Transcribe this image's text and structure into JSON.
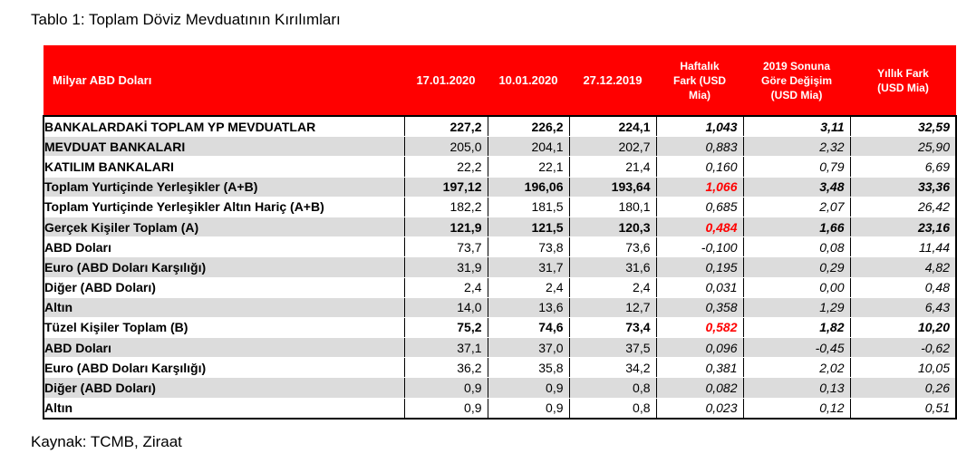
{
  "title": "Tablo 1: Toplam Döviz Mevduatının Kırılımları",
  "source": "Kaynak: TCMB, Ziraat",
  "table": {
    "headers": {
      "label": "Milyar ABD Doları",
      "col1": "17.01.2020",
      "col2": "10.01.2020",
      "col3": "27.12.2019",
      "col4_l1": "Haftalık",
      "col4_l2": "Fark (USD",
      "col4_l3": "Mia)",
      "col5_l1": "2019 Sonuna",
      "col5_l2": "Göre Değişim",
      "col5_l3": "(USD Mia)",
      "col6_l1": "Yıllık Fark",
      "col6_l2": "(USD Mia)"
    },
    "rows": [
      {
        "name": "BANKALARDAKİ TOPLAM YP MEVDUATLAR",
        "c1": "227,2",
        "c2": "226,2",
        "c3": "224,1",
        "c4": "1,043",
        "c5": "3,11",
        "c6": "32,59"
      },
      {
        "name": "MEVDUAT BANKALARI",
        "c1": "205,0",
        "c2": "204,1",
        "c3": "202,7",
        "c4": "0,883",
        "c5": "2,32",
        "c6": "25,90"
      },
      {
        "name": "KATILIM BANKALARI",
        "c1": "22,2",
        "c2": "22,1",
        "c3": "21,4",
        "c4": "0,160",
        "c5": "0,79",
        "c6": "6,69"
      },
      {
        "name": "Toplam Yurtiçinde Yerleşikler (A+B)",
        "c1": "197,12",
        "c2": "196,06",
        "c3": "193,64",
        "c4": "1,066",
        "c5": "3,48",
        "c6": "33,36"
      },
      {
        "name": "Toplam Yurtiçinde Yerleşikler Altın Hariç (A+B)",
        "c1": "182,2",
        "c2": "181,5",
        "c3": "180,1",
        "c4": "0,685",
        "c5": "2,07",
        "c6": "26,42"
      },
      {
        "name": "Gerçek Kişiler Toplam (A)",
        "c1": "121,9",
        "c2": "121,5",
        "c3": "120,3",
        "c4": "0,484",
        "c5": "1,66",
        "c6": "23,16"
      },
      {
        "name": "ABD Doları",
        "c1": "73,7",
        "c2": "73,8",
        "c3": "73,6",
        "c4": "-0,100",
        "c5": "0,08",
        "c6": "11,44"
      },
      {
        "name": "Euro (ABD Doları Karşılığı)",
        "c1": "31,9",
        "c2": "31,7",
        "c3": "31,6",
        "c4": "0,195",
        "c5": "0,29",
        "c6": "4,82"
      },
      {
        "name": "Diğer (ABD Doları)",
        "c1": "2,4",
        "c2": "2,4",
        "c3": "2,4",
        "c4": "0,031",
        "c5": "0,00",
        "c6": "0,48"
      },
      {
        "name": "Altın",
        "c1": "14,0",
        "c2": "13,6",
        "c3": "12,7",
        "c4": "0,358",
        "c5": "1,29",
        "c6": "6,43"
      },
      {
        "name": "Tüzel Kişiler Toplam (B)",
        "c1": "75,2",
        "c2": "74,6",
        "c3": "73,4",
        "c4": "0,582",
        "c5": "1,82",
        "c6": "10,20"
      },
      {
        "name": "ABD Doları",
        "c1": "37,1",
        "c2": "37,0",
        "c3": "37,5",
        "c4": "0,096",
        "c5": "-0,45",
        "c6": "-0,62"
      },
      {
        "name": "Euro (ABD Doları Karşılığı)",
        "c1": "36,2",
        "c2": "35,8",
        "c3": "34,2",
        "c4": "0,381",
        "c5": "2,02",
        "c6": "10,05"
      },
      {
        "name": "Diğer (ABD Doları)",
        "c1": "0,9",
        "c2": "0,9",
        "c3": "0,8",
        "c4": "0,082",
        "c5": "0,13",
        "c6": "0,26"
      },
      {
        "name": "Altın",
        "c1": "0,9",
        "c2": "0,9",
        "c3": "0,8",
        "c4": "0,023",
        "c5": "0,12",
        "c6": "0,51"
      }
    ]
  },
  "colors": {
    "header_bg": "#ff0000",
    "highlight_text": "#ff0000",
    "zebra_bg": "#dcdcdc"
  }
}
